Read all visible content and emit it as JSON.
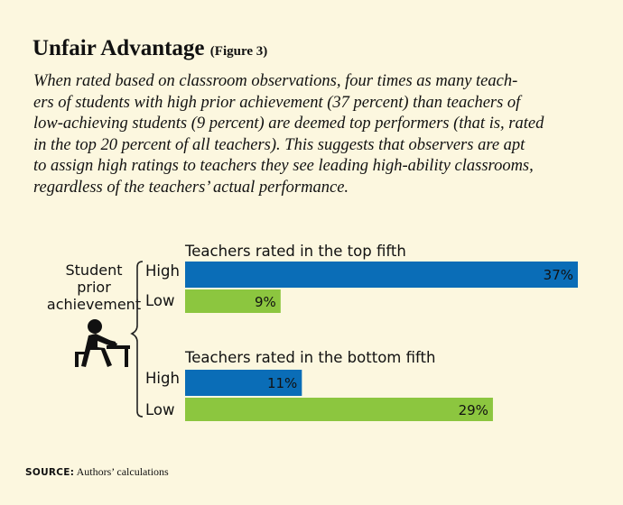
{
  "title": "Unfair Advantage",
  "figure_label": "(Figure 3)",
  "caption_lines": [
    "When rated based on classroom observations, four times as many teach-",
    "ers of students with high prior achievement (37 percent) than teachers of",
    "low-achieving students (9 percent) are deemed top performers (that is, rated",
    "in the top 20 percent of all teachers). This suggests that observers are apt",
    "to assign high ratings to teachers they see leading high-ability classrooms,",
    "regardless of the teachers’ actual performance."
  ],
  "source_label": "SOURCE:",
  "source_text": "Authors’ calculations",
  "icon": "student-at-desk-icon",
  "colors": {
    "high": "#0a6db7",
    "low": "#8cc63f",
    "background": "#fcf7df"
  },
  "chart_data": {
    "type": "bar",
    "orientation": "horizontal",
    "side_label_lines": [
      "Student",
      "prior",
      "achievement"
    ],
    "xlim": [
      0,
      37
    ],
    "groups": [
      {
        "title": "Teachers rated in the top fifth",
        "bars": [
          {
            "category": "High",
            "value": 37,
            "label": "37%"
          },
          {
            "category": "Low",
            "value": 9,
            "label": "9%"
          }
        ]
      },
      {
        "title": "Teachers rated in the bottom fifth",
        "bars": [
          {
            "category": "High",
            "value": 11,
            "label": "11%"
          },
          {
            "category": "Low",
            "value": 29,
            "label": "29%"
          }
        ]
      }
    ]
  }
}
